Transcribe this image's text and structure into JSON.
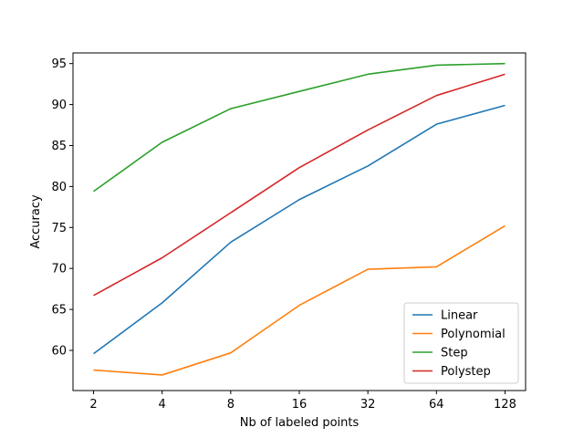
{
  "chart_data": {
    "type": "line",
    "title": "",
    "xlabel": "Nb of labeled points",
    "ylabel": "Accuracy",
    "x": [
      2,
      4,
      8,
      16,
      32,
      64,
      128
    ],
    "x_tick_labels": [
      "2",
      "4",
      "8",
      "16",
      "32",
      "64",
      "128"
    ],
    "x_scale": "log2",
    "y_ticks": [
      60,
      65,
      70,
      75,
      80,
      85,
      90,
      95
    ],
    "y_tick_labels": [
      "60",
      "65",
      "70",
      "75",
      "80",
      "85",
      "90",
      "95"
    ],
    "ylim": [
      55.1,
      96.3
    ],
    "grid": false,
    "legend_position": "lower-right",
    "series": [
      {
        "name": "Linear",
        "color": "#1f77b4",
        "values": [
          59.6,
          65.8,
          73.2,
          78.4,
          82.5,
          87.6,
          89.9
        ]
      },
      {
        "name": "Polynomial",
        "color": "#ff7f0e",
        "values": [
          57.6,
          57.0,
          59.7,
          65.5,
          69.9,
          70.2,
          75.2
        ]
      },
      {
        "name": "Step",
        "color": "#2ca02c",
        "values": [
          79.4,
          85.4,
          89.5,
          91.6,
          93.7,
          94.8,
          95.0
        ]
      },
      {
        "name": "Polystep",
        "color": "#d62728",
        "values": [
          66.7,
          71.3,
          76.8,
          82.3,
          86.9,
          91.1,
          93.7
        ]
      }
    ]
  }
}
